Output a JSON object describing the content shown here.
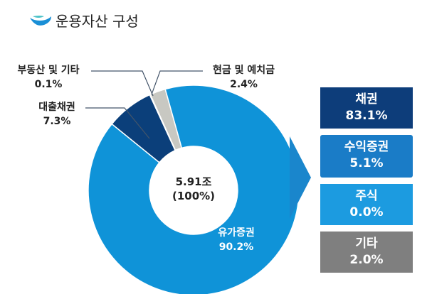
{
  "title": "운용자산 구성",
  "chart_data": {
    "type": "pie",
    "title": "운용자산 구성",
    "center_label": {
      "value": "5.91조",
      "percent": "(100%)"
    },
    "slices": [
      {
        "name": "대출채권",
        "value": 7.3,
        "label": "7.3%",
        "color": "#0b3f7a"
      },
      {
        "name": "부동산  및 기타",
        "value": 0.1,
        "label": "0.1%",
        "color": "#0b3f7a"
      },
      {
        "name": "현금 및 예치금",
        "value": 2.4,
        "label": "2.4%",
        "color": "#c8c8c2"
      },
      {
        "name": "유가증권",
        "value": 90.2,
        "label": "90.2%",
        "color": "#0f93d8"
      }
    ],
    "breakdown_of": "유가증권",
    "breakdown": [
      {
        "name": "채권",
        "label": "83.1%",
        "color": "#0d3d7a"
      },
      {
        "name": "수익증권",
        "label": "5.1%",
        "color": "#1a7cc7"
      },
      {
        "name": "주식",
        "label": "0.0%",
        "color": "#1c9be0"
      },
      {
        "name": "기타",
        "label": "2.0%",
        "color": "#7f7f7f"
      }
    ]
  }
}
